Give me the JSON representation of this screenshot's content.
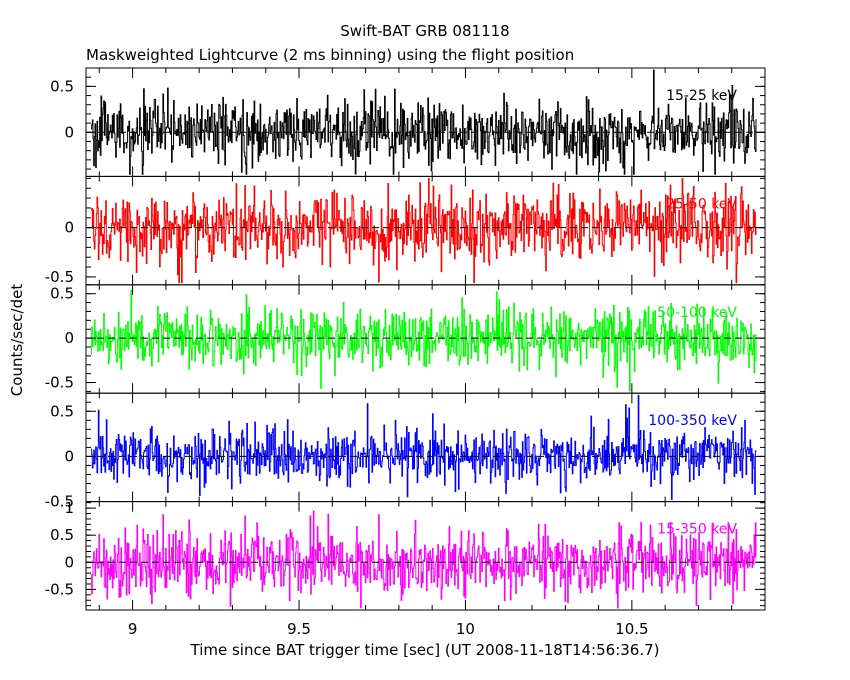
{
  "chart_data": {
    "type": "line",
    "title": "Swift-BAT GRB 081118",
    "subtitle": "Maskweighted Lightcurve (2 ms binning) using the flight position",
    "xlabel": "Time since BAT trigger time [sec] (UT 2008-11-18T14:56:36.7)",
    "ylabel": "Counts/sec/det",
    "xlim": [
      8.86,
      10.9
    ],
    "x_ticks": [
      "9",
      "9.5",
      "10",
      "10.5"
    ],
    "x_tick_values": [
      9,
      9.5,
      10,
      10.5
    ],
    "grid": false,
    "series": [
      {
        "name": "15-25 keV",
        "color": "#000000",
        "ylim": [
          -0.48,
          0.7
        ],
        "y_ticks": [
          "0.5",
          "0"
        ],
        "y_tick_values": [
          0.5,
          0
        ],
        "noise_amplitude": 0.17,
        "values_summary": "noisy light curve fluctuating around 0 between about -0.45 and 0.7"
      },
      {
        "name": "25-50 keV",
        "color": "#ff0000",
        "ylim": [
          -0.58,
          0.52
        ],
        "y_ticks": [
          "0",
          "-0.5"
        ],
        "y_tick_values": [
          0,
          -0.5
        ],
        "noise_amplitude": 0.18,
        "values_summary": "noisy light curve fluctuating around 0 between about -0.55 and 0.5"
      },
      {
        "name": "50-100 keV",
        "color": "#00ff00",
        "ylim": [
          -0.62,
          0.6
        ],
        "y_ticks": [
          "0.5",
          "0",
          "-0.5"
        ],
        "y_tick_values": [
          0.5,
          0,
          -0.5
        ],
        "noise_amplitude": 0.16,
        "values_summary": "noisy light curve fluctuating around 0 between about -0.6 and 0.55"
      },
      {
        "name": "100-350 keV",
        "color": "#0000ff",
        "ylim": [
          -0.5,
          0.7
        ],
        "y_ticks": [
          "0.5",
          "0",
          "-0.5"
        ],
        "y_tick_values": [
          0.5,
          0,
          -0.5
        ],
        "noise_amplitude": 0.15,
        "values_summary": "noisy light curve fluctuating around 0 between about -0.5 and 0.65"
      },
      {
        "name": "15-350 keV",
        "color": "#ff00ff",
        "ylim": [
          -0.88,
          1.12
        ],
        "y_ticks": [
          "1",
          "0.5",
          "0",
          "-0.5"
        ],
        "y_tick_values": [
          1,
          0.5,
          0,
          -0.5
        ],
        "noise_amplitude": 0.3,
        "values_summary": "noisy light curve fluctuating around 0 between about -0.85 and 1.1"
      }
    ]
  }
}
